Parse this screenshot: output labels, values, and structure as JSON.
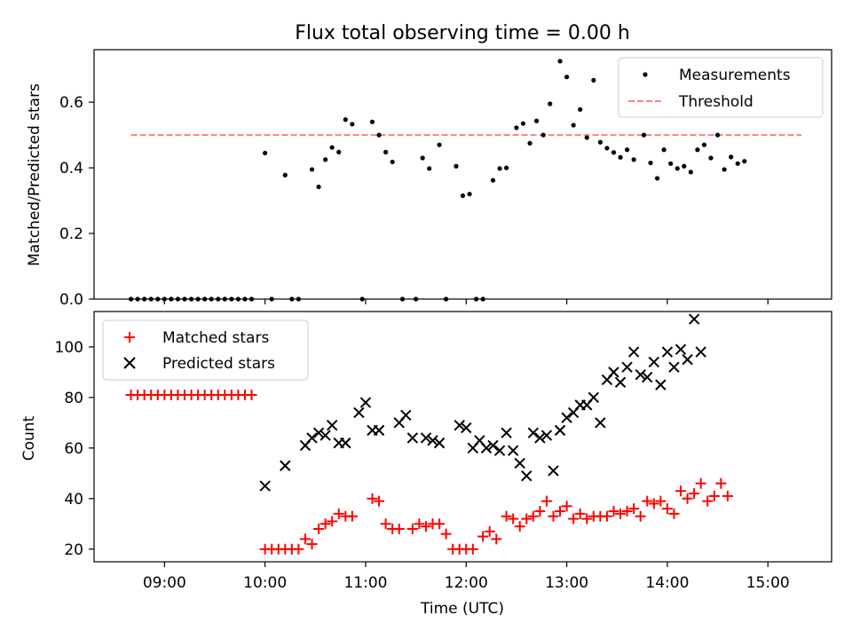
{
  "figure": {
    "title": "Flux total observing time = 0.00 h"
  },
  "chart_data": [
    {
      "type": "scatter",
      "panel": "top",
      "title": "Flux total observing time = 0.00 h",
      "xlabel": "",
      "ylabel": "Matched/Predicted stars",
      "xlim": [
        "08:18",
        "15:38"
      ],
      "ylim": [
        0,
        0.76
      ],
      "yticks": [
        0.0,
        0.2,
        0.4,
        0.6
      ],
      "ytick_labels": [
        "0.0",
        "0.2",
        "0.4",
        "0.6"
      ],
      "xticks": [
        "09:00",
        "10:00",
        "11:00",
        "12:00",
        "13:00",
        "14:00",
        "15:00"
      ],
      "grid": false,
      "legend": "top-right",
      "legend_entries": [
        "Measurements",
        "Threshold"
      ],
      "threshold": {
        "name": "Threshold",
        "value": 0.5,
        "x_start": "08:40",
        "x_end": "15:20",
        "color": "#ff7f7f",
        "style": "dashed"
      },
      "series": [
        {
          "name": "Measurements",
          "color": "#000000",
          "marker": "dot",
          "points": [
            [
              "08:40",
              0.0
            ],
            [
              "08:44",
              0.0
            ],
            [
              "08:48",
              0.0
            ],
            [
              "08:52",
              0.0
            ],
            [
              "08:56",
              0.0
            ],
            [
              "09:00",
              0.0
            ],
            [
              "09:04",
              0.0
            ],
            [
              "09:08",
              0.0
            ],
            [
              "09:12",
              0.0
            ],
            [
              "09:16",
              0.0
            ],
            [
              "09:20",
              0.0
            ],
            [
              "09:24",
              0.0
            ],
            [
              "09:28",
              0.0
            ],
            [
              "09:32",
              0.0
            ],
            [
              "09:36",
              0.0
            ],
            [
              "09:40",
              0.0
            ],
            [
              "09:44",
              0.0
            ],
            [
              "09:48",
              0.0
            ],
            [
              "09:52",
              0.0
            ],
            [
              "10:00",
              0.445
            ],
            [
              "10:04",
              0.0
            ],
            [
              "10:12",
              0.378
            ],
            [
              "10:16",
              0.0
            ],
            [
              "10:20",
              0.0
            ],
            [
              "10:28",
              0.395
            ],
            [
              "10:32",
              0.342
            ],
            [
              "10:36",
              0.425
            ],
            [
              "10:40",
              0.462
            ],
            [
              "10:44",
              0.448
            ],
            [
              "10:48",
              0.547
            ],
            [
              "10:52",
              0.533
            ],
            [
              "10:58",
              0.0
            ],
            [
              "11:04",
              0.54
            ],
            [
              "11:08",
              0.5
            ],
            [
              "11:12",
              0.448
            ],
            [
              "11:16",
              0.418
            ],
            [
              "11:22",
              0.0
            ],
            [
              "11:30",
              0.0
            ],
            [
              "11:34",
              0.43
            ],
            [
              "11:38",
              0.398
            ],
            [
              "11:44",
              0.47
            ],
            [
              "11:48",
              0.0
            ],
            [
              "11:54",
              0.405
            ],
            [
              "11:58",
              0.315
            ],
            [
              "12:02",
              0.32
            ],
            [
              "12:06",
              0.0
            ],
            [
              "12:10",
              0.0
            ],
            [
              "12:16",
              0.362
            ],
            [
              "12:20",
              0.398
            ],
            [
              "12:24",
              0.4
            ],
            [
              "12:30",
              0.522
            ],
            [
              "12:34",
              0.535
            ],
            [
              "12:38",
              0.475
            ],
            [
              "12:42",
              0.543
            ],
            [
              "12:46",
              0.5
            ],
            [
              "12:50",
              0.595
            ],
            [
              "12:56",
              0.725
            ],
            [
              "13:00",
              0.677
            ],
            [
              "13:04",
              0.53
            ],
            [
              "13:08",
              0.578
            ],
            [
              "13:12",
              0.492
            ],
            [
              "13:16",
              0.667
            ],
            [
              "13:20",
              0.478
            ],
            [
              "13:24",
              0.46
            ],
            [
              "13:28",
              0.447
            ],
            [
              "13:32",
              0.432
            ],
            [
              "13:36",
              0.455
            ],
            [
              "13:40",
              0.425
            ],
            [
              "13:46",
              0.5
            ],
            [
              "13:50",
              0.415
            ],
            [
              "13:54",
              0.368
            ],
            [
              "13:58",
              0.455
            ],
            [
              "14:02",
              0.413
            ],
            [
              "14:06",
              0.398
            ],
            [
              "14:10",
              0.405
            ],
            [
              "14:14",
              0.387
            ],
            [
              "14:18",
              0.455
            ],
            [
              "14:22",
              0.47
            ],
            [
              "14:26",
              0.43
            ],
            [
              "14:30",
              0.5
            ],
            [
              "14:34",
              0.395
            ],
            [
              "14:38",
              0.433
            ],
            [
              "14:42",
              0.413
            ],
            [
              "14:46",
              0.42
            ]
          ]
        }
      ]
    },
    {
      "type": "scatter",
      "panel": "bottom",
      "xlabel": "Time (UTC)",
      "ylabel": "Count",
      "xlim": [
        "08:18",
        "15:38"
      ],
      "ylim": [
        15,
        114
      ],
      "yticks": [
        20,
        40,
        60,
        80,
        100
      ],
      "xticks": [
        "09:00",
        "10:00",
        "11:00",
        "12:00",
        "13:00",
        "14:00",
        "15:00"
      ],
      "grid": false,
      "legend": "top-left",
      "legend_entries": [
        "Matched stars",
        "Predicted stars"
      ],
      "series": [
        {
          "name": "Matched stars",
          "color": "#ff0000",
          "marker": "plus",
          "points": [
            [
              "08:40",
              81
            ],
            [
              "08:44",
              81
            ],
            [
              "08:48",
              81
            ],
            [
              "08:52",
              81
            ],
            [
              "08:56",
              81
            ],
            [
              "09:00",
              81
            ],
            [
              "09:04",
              81
            ],
            [
              "09:08",
              81
            ],
            [
              "09:12",
              81
            ],
            [
              "09:16",
              81
            ],
            [
              "09:20",
              81
            ],
            [
              "09:24",
              81
            ],
            [
              "09:28",
              81
            ],
            [
              "09:32",
              81
            ],
            [
              "09:36",
              81
            ],
            [
              "09:40",
              81
            ],
            [
              "09:44",
              81
            ],
            [
              "09:48",
              81
            ],
            [
              "09:52",
              81
            ],
            [
              "10:00",
              20
            ],
            [
              "10:04",
              20
            ],
            [
              "10:08",
              20
            ],
            [
              "10:12",
              20
            ],
            [
              "10:16",
              20
            ],
            [
              "10:20",
              20
            ],
            [
              "10:24",
              24
            ],
            [
              "10:28",
              22
            ],
            [
              "10:32",
              28
            ],
            [
              "10:36",
              30
            ],
            [
              "10:40",
              31
            ],
            [
              "10:44",
              34
            ],
            [
              "10:48",
              33
            ],
            [
              "10:52",
              33
            ],
            [
              "11:04",
              40
            ],
            [
              "11:08",
              39
            ],
            [
              "11:12",
              30
            ],
            [
              "11:16",
              28
            ],
            [
              "11:20",
              28
            ],
            [
              "11:28",
              28
            ],
            [
              "11:32",
              30
            ],
            [
              "11:36",
              29
            ],
            [
              "11:40",
              30
            ],
            [
              "11:44",
              30
            ],
            [
              "11:48",
              26
            ],
            [
              "11:52",
              20
            ],
            [
              "11:56",
              20
            ],
            [
              "12:00",
              20
            ],
            [
              "12:04",
              20
            ],
            [
              "12:10",
              25
            ],
            [
              "12:14",
              27
            ],
            [
              "12:18",
              24
            ],
            [
              "12:24",
              33
            ],
            [
              "12:28",
              32
            ],
            [
              "12:32",
              29
            ],
            [
              "12:36",
              32
            ],
            [
              "12:40",
              33
            ],
            [
              "12:44",
              35
            ],
            [
              "12:48",
              39
            ],
            [
              "12:52",
              33
            ],
            [
              "12:56",
              35
            ],
            [
              "13:00",
              37
            ],
            [
              "13:04",
              32
            ],
            [
              "13:08",
              34
            ],
            [
              "13:12",
              32
            ],
            [
              "13:16",
              33
            ],
            [
              "13:20",
              33
            ],
            [
              "13:24",
              33
            ],
            [
              "13:28",
              35
            ],
            [
              "13:32",
              34
            ],
            [
              "13:36",
              35
            ],
            [
              "13:40",
              36
            ],
            [
              "13:44",
              33
            ],
            [
              "13:48",
              39
            ],
            [
              "13:52",
              38
            ],
            [
              "13:56",
              39
            ],
            [
              "14:00",
              36
            ],
            [
              "14:04",
              34
            ],
            [
              "14:08",
              43
            ],
            [
              "14:12",
              40
            ],
            [
              "14:16",
              42
            ],
            [
              "14:20",
              46
            ],
            [
              "14:24",
              39
            ],
            [
              "14:28",
              41
            ],
            [
              "14:32",
              46
            ],
            [
              "14:36",
              41
            ]
          ]
        },
        {
          "name": "Predicted stars",
          "color": "#000000",
          "marker": "x",
          "points": [
            [
              "10:00",
              45
            ],
            [
              "10:12",
              53
            ],
            [
              "10:24",
              61
            ],
            [
              "10:28",
              64
            ],
            [
              "10:32",
              66
            ],
            [
              "10:36",
              65
            ],
            [
              "10:40",
              69
            ],
            [
              "10:44",
              62
            ],
            [
              "10:48",
              62
            ],
            [
              "10:56",
              74
            ],
            [
              "11:00",
              78
            ],
            [
              "11:04",
              67
            ],
            [
              "11:08",
              67
            ],
            [
              "11:20",
              70
            ],
            [
              "11:24",
              73
            ],
            [
              "11:28",
              64
            ],
            [
              "11:36",
              64
            ],
            [
              "11:40",
              63
            ],
            [
              "11:44",
              62
            ],
            [
              "11:56",
              69
            ],
            [
              "12:00",
              68
            ],
            [
              "12:04",
              60
            ],
            [
              "12:08",
              63
            ],
            [
              "12:12",
              60
            ],
            [
              "12:16",
              61
            ],
            [
              "12:20",
              59
            ],
            [
              "12:24",
              66
            ],
            [
              "12:28",
              59
            ],
            [
              "12:32",
              54
            ],
            [
              "12:36",
              49
            ],
            [
              "12:40",
              66
            ],
            [
              "12:44",
              64
            ],
            [
              "12:48",
              65
            ],
            [
              "12:52",
              51
            ],
            [
              "12:56",
              67
            ],
            [
              "13:00",
              72
            ],
            [
              "13:04",
              74
            ],
            [
              "13:08",
              77
            ],
            [
              "13:12",
              77
            ],
            [
              "13:16",
              80
            ],
            [
              "13:20",
              70
            ],
            [
              "13:24",
              87
            ],
            [
              "13:28",
              90
            ],
            [
              "13:32",
              86
            ],
            [
              "13:36",
              92
            ],
            [
              "13:40",
              98
            ],
            [
              "13:44",
              89
            ],
            [
              "13:48",
              88
            ],
            [
              "13:52",
              94
            ],
            [
              "13:56",
              85
            ],
            [
              "14:00",
              98
            ],
            [
              "14:04",
              92
            ],
            [
              "14:08",
              99
            ],
            [
              "14:12",
              95
            ],
            [
              "14:16",
              111
            ],
            [
              "14:20",
              98
            ]
          ]
        }
      ]
    }
  ]
}
